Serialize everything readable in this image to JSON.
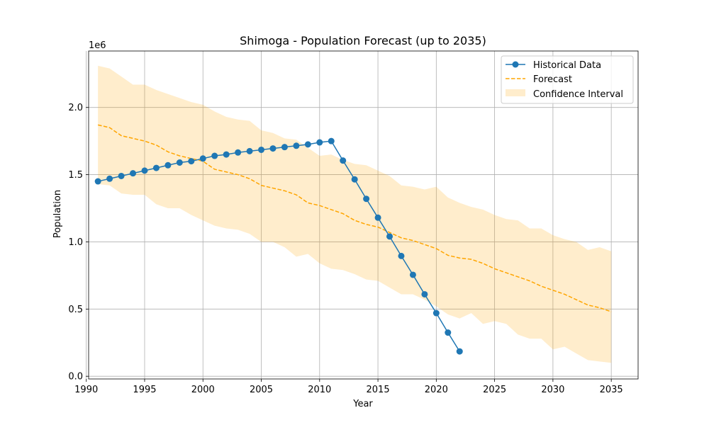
{
  "chart_data": {
    "type": "line",
    "title": "Shimoga - Population Forecast (up to 2035)",
    "xlabel": "Year",
    "ylabel": "Population",
    "y_offset_text": "1e6",
    "xlim": [
      1990.2,
      2037.3
    ],
    "ylim": [
      -0.02,
      2.42
    ],
    "x_ticks": [
      1990,
      1995,
      2000,
      2005,
      2010,
      2015,
      2020,
      2025,
      2030,
      2035
    ],
    "x_tick_labels": [
      "1990",
      "1995",
      "2000",
      "2005",
      "2010",
      "2015",
      "2020",
      "2025",
      "2030",
      "2035"
    ],
    "y_ticks": [
      0.0,
      0.5,
      1.0,
      1.5,
      2.0
    ],
    "y_tick_labels": [
      "0.0",
      "0.5",
      "1.0",
      "1.5",
      "2.0"
    ],
    "y_unit_scale": 1000000,
    "grid": true,
    "legend_position": "top-right",
    "colors": {
      "historical": "#1f77b4",
      "forecast": "#ffa500",
      "confidence_fill": "#ffa500"
    },
    "series": [
      {
        "name": "Historical Data",
        "style": "solid-markers",
        "x": [
          1991,
          1992,
          1993,
          1994,
          1995,
          1996,
          1997,
          1998,
          1999,
          2000,
          2001,
          2002,
          2003,
          2004,
          2005,
          2006,
          2007,
          2008,
          2009,
          2010,
          2011,
          2012,
          2013,
          2014,
          2015,
          2016,
          2017,
          2018,
          2019,
          2020,
          2021,
          2022
        ],
        "y": [
          1.45,
          1.47,
          1.49,
          1.51,
          1.53,
          1.55,
          1.57,
          1.59,
          1.6,
          1.62,
          1.64,
          1.65,
          1.665,
          1.675,
          1.685,
          1.695,
          1.705,
          1.715,
          1.725,
          1.74,
          1.75,
          1.605,
          1.465,
          1.32,
          1.18,
          1.04,
          0.895,
          0.755,
          0.61,
          0.47,
          0.325,
          0.185
        ]
      },
      {
        "name": "Forecast",
        "style": "dashed",
        "x": [
          1991,
          1992,
          1993,
          1994,
          1995,
          1996,
          1997,
          1998,
          1999,
          2000,
          2001,
          2002,
          2003,
          2004,
          2005,
          2006,
          2007,
          2008,
          2009,
          2010,
          2011,
          2012,
          2013,
          2014,
          2015,
          2016,
          2017,
          2018,
          2019,
          2020,
          2021,
          2022,
          2023,
          2024,
          2025,
          2026,
          2027,
          2028,
          2029,
          2030,
          2031,
          2032,
          2033,
          2034,
          2035
        ],
        "y": [
          1.87,
          1.85,
          1.79,
          1.77,
          1.75,
          1.72,
          1.67,
          1.64,
          1.62,
          1.6,
          1.54,
          1.52,
          1.5,
          1.47,
          1.42,
          1.4,
          1.38,
          1.35,
          1.29,
          1.27,
          1.24,
          1.21,
          1.16,
          1.13,
          1.11,
          1.07,
          1.03,
          1.01,
          0.98,
          0.95,
          0.9,
          0.88,
          0.87,
          0.84,
          0.8,
          0.77,
          0.74,
          0.71,
          0.67,
          0.64,
          0.61,
          0.57,
          0.53,
          0.51,
          0.48
        ]
      }
    ],
    "confidence_interval": {
      "name": "Confidence Interval",
      "x": [
        1991,
        1992,
        1993,
        1994,
        1995,
        1996,
        1997,
        1998,
        1999,
        2000,
        2001,
        2002,
        2003,
        2004,
        2005,
        2006,
        2007,
        2008,
        2009,
        2010,
        2011,
        2012,
        2013,
        2014,
        2015,
        2016,
        2017,
        2018,
        2019,
        2020,
        2021,
        2022,
        2023,
        2024,
        2025,
        2026,
        2027,
        2028,
        2029,
        2030,
        2031,
        2032,
        2033,
        2034,
        2035
      ],
      "upper": [
        2.31,
        2.29,
        2.23,
        2.17,
        2.17,
        2.13,
        2.1,
        2.07,
        2.04,
        2.02,
        1.97,
        1.93,
        1.91,
        1.9,
        1.83,
        1.81,
        1.77,
        1.76,
        1.7,
        1.64,
        1.65,
        1.61,
        1.58,
        1.57,
        1.53,
        1.49,
        1.42,
        1.41,
        1.39,
        1.41,
        1.33,
        1.29,
        1.26,
        1.24,
        1.2,
        1.17,
        1.16,
        1.1,
        1.1,
        1.05,
        1.02,
        1.0,
        0.94,
        0.96,
        0.93
      ],
      "lower": [
        1.43,
        1.42,
        1.36,
        1.35,
        1.35,
        1.28,
        1.25,
        1.25,
        1.2,
        1.16,
        1.12,
        1.1,
        1.09,
        1.06,
        1.0,
        1.0,
        0.96,
        0.89,
        0.91,
        0.84,
        0.8,
        0.79,
        0.76,
        0.72,
        0.71,
        0.66,
        0.61,
        0.61,
        0.57,
        0.52,
        0.46,
        0.43,
        0.47,
        0.39,
        0.41,
        0.39,
        0.31,
        0.28,
        0.28,
        0.2,
        0.22,
        0.17,
        0.12,
        0.11,
        0.1
      ]
    }
  }
}
